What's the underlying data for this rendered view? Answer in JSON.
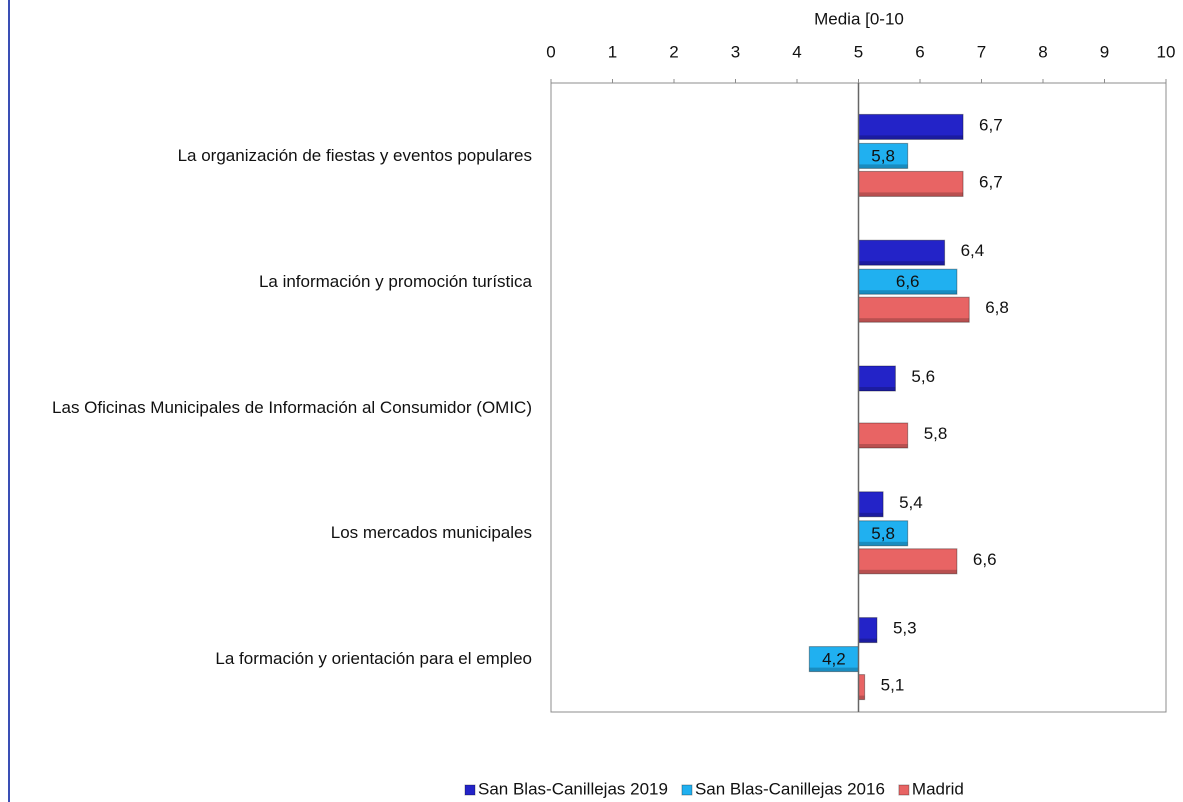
{
  "chart_data": {
    "type": "bar",
    "orientation": "horizontal",
    "x_label": "Media [0-10",
    "categories": [
      "La organización de fiestas y eventos populares",
      "La información y promoción turística",
      "Las Oficinas Municipales de Información al Consumidor (OMIC)",
      "Los mercados municipales",
      "La formación y orientación para el empleo"
    ],
    "series": [
      {
        "name": "San Blas-Canillejas 2019",
        "color": "#2323c8",
        "values": [
          6.7,
          6.4,
          5.6,
          5.4,
          5.3
        ],
        "value_labels": [
          "6,7",
          "6,4",
          "5,6",
          "5,4",
          "5,3"
        ]
      },
      {
        "name": "San Blas-Canillejas 2016",
        "color": "#20b0f0",
        "values": [
          5.8,
          6.6,
          null,
          5.8,
          4.2
        ],
        "value_labels": [
          "5,8",
          "6,6",
          null,
          "5,8",
          "4,2"
        ]
      },
      {
        "name": "Madrid",
        "color": "#e86464",
        "values": [
          6.7,
          6.8,
          5.8,
          6.6,
          5.1
        ],
        "value_labels": [
          "6,7",
          "6,8",
          "5,8",
          "6,6",
          "5,1"
        ]
      }
    ],
    "xlim": [
      0,
      10
    ],
    "xticks": [
      0,
      1,
      2,
      3,
      4,
      5,
      6,
      7,
      8,
      9,
      10
    ],
    "reference_line": 5,
    "legend": "bottom"
  }
}
